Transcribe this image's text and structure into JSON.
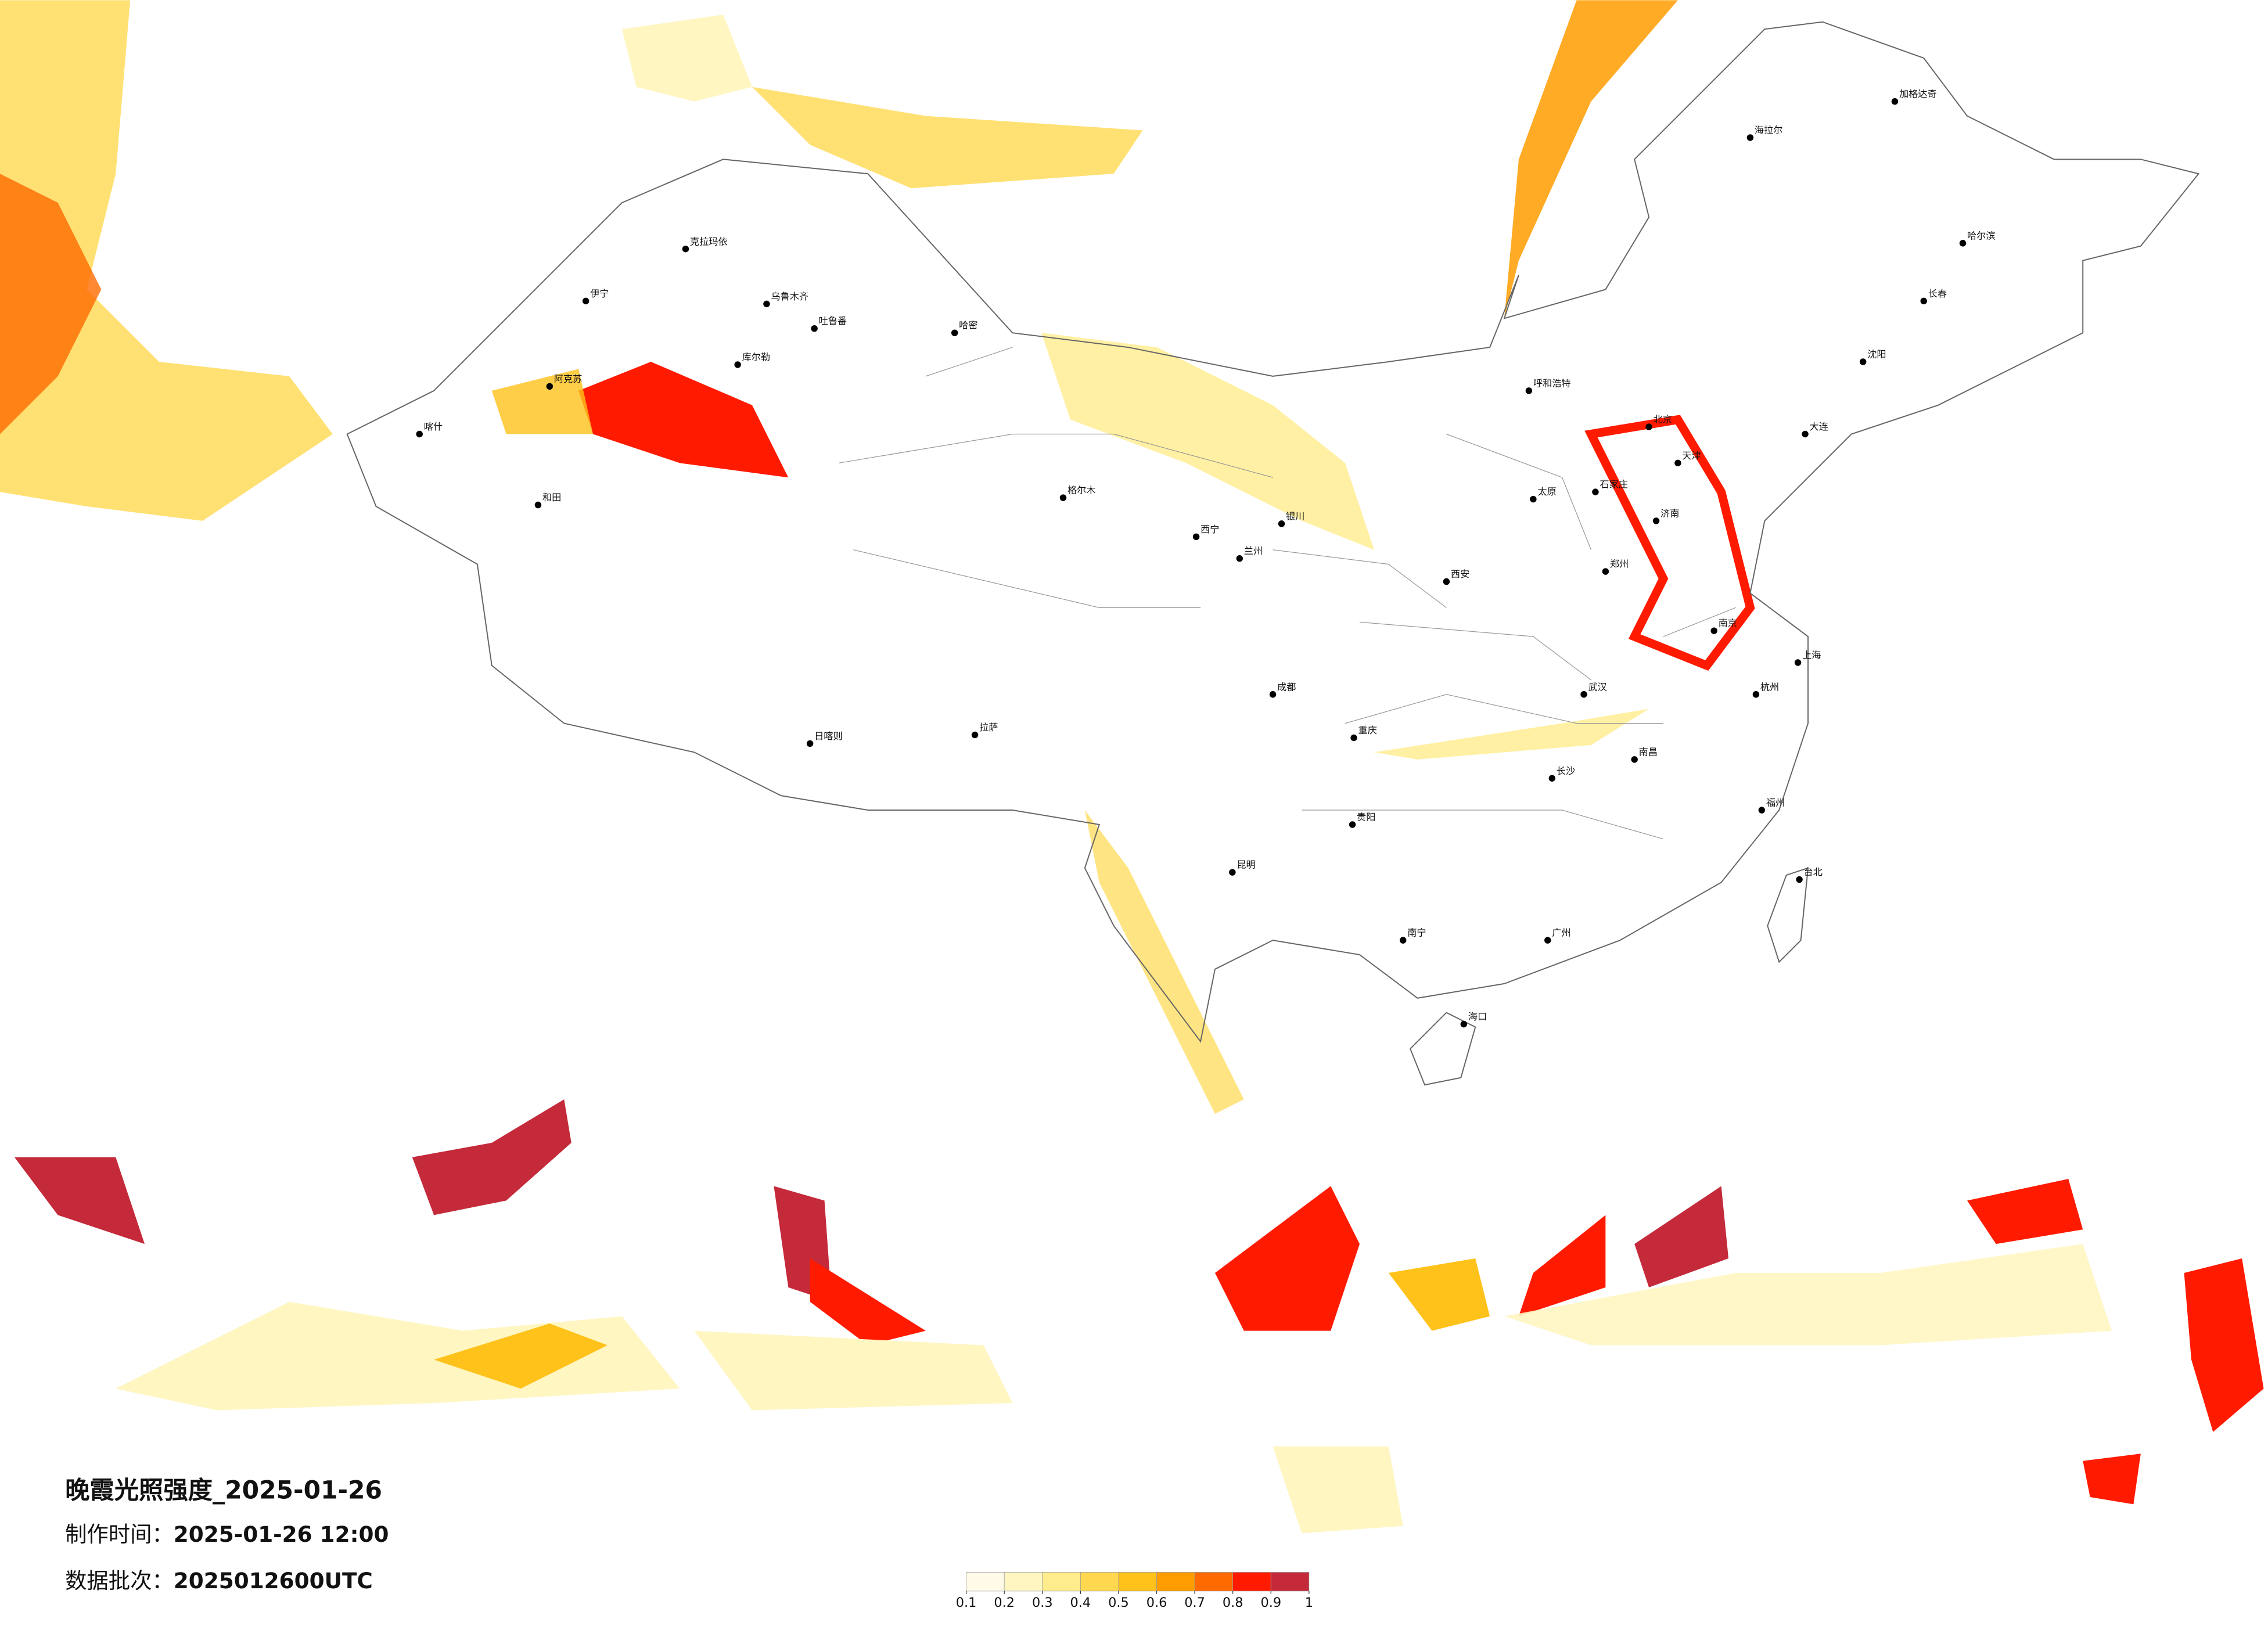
{
  "title": "晚霞光照强度_2025-01-26",
  "made_time": {
    "label": "制作时间：",
    "value": "2025-01-26 12:00"
  },
  "batch": {
    "label": "数据批次：",
    "value": "2025012600UTC"
  },
  "legend": {
    "ticks": [
      0.1,
      0.2,
      0.3,
      0.4,
      0.5,
      0.6,
      0.7,
      0.8,
      0.9,
      1
    ],
    "colors": [
      "#fffbe8",
      "#fff6c2",
      "#ffec8c",
      "#ffd84f",
      "#ffc21a",
      "#ff9c00",
      "#ff6a00",
      "#ff1a00",
      "#c42a3a"
    ]
  },
  "cities": [
    "克拉玛依",
    "乌鲁木齐",
    "吐鲁番",
    "哈密",
    "伊宁",
    "库尔勒",
    "阿克苏",
    "喀什",
    "和田",
    "格尔木",
    "拉萨",
    "日喀则",
    "西宁",
    "兰州",
    "银川",
    "呼和浩特",
    "北京",
    "天津",
    "石家庄",
    "太原",
    "济南",
    "郑州",
    "西安",
    "武汉",
    "长沙",
    "南昌",
    "南京",
    "上海",
    "杭州",
    "福州",
    "广州",
    "南宁",
    "海口",
    "贵阳",
    "昆明",
    "成都",
    "重庆",
    "哈尔滨",
    "长春",
    "沈阳",
    "大连",
    "台北",
    "海拉尔",
    "加格达奇"
  ]
}
